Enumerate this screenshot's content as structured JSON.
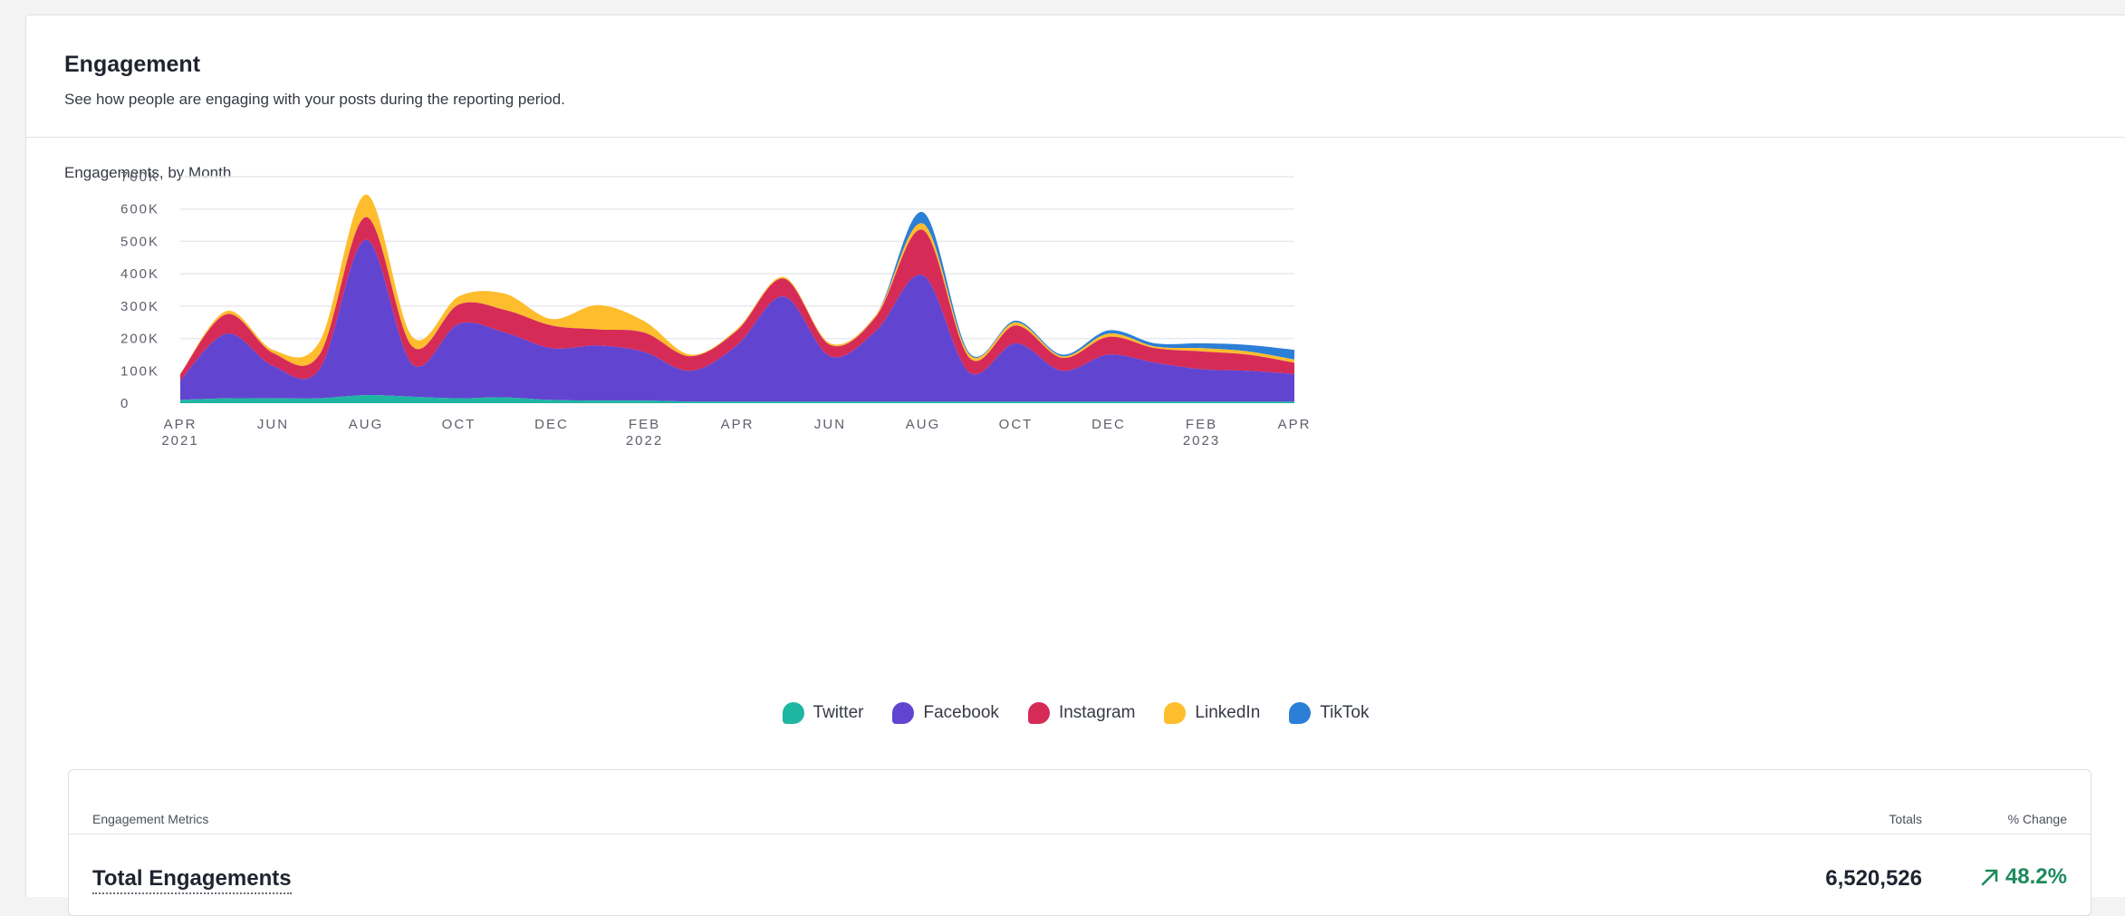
{
  "panel": {
    "title": "Engagement",
    "subtitle": "See how people are engaging with your posts during the reporting period."
  },
  "chart_title": "Engagements, by Month",
  "chart_data": {
    "type": "area",
    "stacked": true,
    "title": "Engagements, by Month",
    "x": [
      "2021-04",
      "2021-05",
      "2021-06",
      "2021-07",
      "2021-08",
      "2021-09",
      "2021-10",
      "2021-11",
      "2021-12",
      "2022-01",
      "2022-02",
      "2022-03",
      "2022-04",
      "2022-05",
      "2022-06",
      "2022-07",
      "2022-08",
      "2022-09",
      "2022-10",
      "2022-11",
      "2022-12",
      "2023-01",
      "2023-02",
      "2023-03",
      "2023-04"
    ],
    "x_tick_labels": [
      {
        "x": "2021-04",
        "label": "APR",
        "sublabel": "2021"
      },
      {
        "x": "2021-06",
        "label": "JUN",
        "sublabel": ""
      },
      {
        "x": "2021-08",
        "label": "AUG",
        "sublabel": ""
      },
      {
        "x": "2021-10",
        "label": "OCT",
        "sublabel": ""
      },
      {
        "x": "2021-12",
        "label": "DEC",
        "sublabel": ""
      },
      {
        "x": "2022-02",
        "label": "FEB",
        "sublabel": "2022"
      },
      {
        "x": "2022-04",
        "label": "APR",
        "sublabel": ""
      },
      {
        "x": "2022-06",
        "label": "JUN",
        "sublabel": ""
      },
      {
        "x": "2022-08",
        "label": "AUG",
        "sublabel": ""
      },
      {
        "x": "2022-10",
        "label": "OCT",
        "sublabel": ""
      },
      {
        "x": "2022-12",
        "label": "DEC",
        "sublabel": ""
      },
      {
        "x": "2023-02",
        "label": "FEB",
        "sublabel": "2023"
      },
      {
        "x": "2023-04",
        "label": "APR",
        "sublabel": ""
      }
    ],
    "y_ticks": [
      0,
      100000,
      200000,
      300000,
      400000,
      500000,
      600000,
      700000
    ],
    "y_tick_labels": [
      "0",
      "100K",
      "200K",
      "300K",
      "400K",
      "500K",
      "600K",
      "700K"
    ],
    "ylim": [
      0,
      700000
    ],
    "grid": true,
    "legend_position": "bottom-center",
    "series": [
      {
        "name": "Twitter",
        "color": "#1fb5a3",
        "values": [
          10000,
          15000,
          15000,
          15000,
          25000,
          20000,
          15000,
          18000,
          10000,
          8000,
          8000,
          5000,
          5000,
          5000,
          5000,
          5000,
          5000,
          5000,
          5000,
          5000,
          5000,
          5000,
          5000,
          5000,
          5000
        ]
      },
      {
        "name": "Facebook",
        "color": "#6145d1",
        "values": [
          60000,
          200000,
          100000,
          90000,
          480000,
          100000,
          230000,
          200000,
          160000,
          170000,
          150000,
          95000,
          175000,
          325000,
          140000,
          220000,
          390000,
          90000,
          180000,
          95000,
          145000,
          120000,
          100000,
          95000,
          85000
        ]
      },
      {
        "name": "Instagram",
        "color": "#d62b57",
        "values": [
          20000,
          60000,
          40000,
          45000,
          70000,
          55000,
          60000,
          70000,
          70000,
          50000,
          60000,
          45000,
          45000,
          55000,
          35000,
          45000,
          140000,
          45000,
          55000,
          40000,
          55000,
          45000,
          55000,
          50000,
          35000
        ]
      },
      {
        "name": "LinkedIn",
        "color": "#fdbd2d",
        "values": [
          0,
          10000,
          10000,
          40000,
          70000,
          30000,
          25000,
          50000,
          20000,
          75000,
          35000,
          5000,
          5000,
          5000,
          5000,
          5000,
          20000,
          10000,
          10000,
          5000,
          10000,
          5000,
          10000,
          10000,
          10000
        ]
      },
      {
        "name": "TikTok",
        "color": "#2b7fd7",
        "values": [
          0,
          0,
          0,
          0,
          0,
          0,
          0,
          0,
          0,
          0,
          0,
          0,
          0,
          0,
          0,
          0,
          35000,
          5000,
          5000,
          5000,
          10000,
          10000,
          15000,
          20000,
          30000
        ]
      }
    ]
  },
  "legend": [
    {
      "name": "Twitter",
      "color": "#1fb5a3"
    },
    {
      "name": "Facebook",
      "color": "#6145d1"
    },
    {
      "name": "Instagram",
      "color": "#d62b57"
    },
    {
      "name": "LinkedIn",
      "color": "#fdbd2d"
    },
    {
      "name": "TikTok",
      "color": "#2b7fd7"
    }
  ],
  "metrics": {
    "header_label": "Engagement Metrics",
    "header_totals": "Totals",
    "header_change": "% Change",
    "rows": [
      {
        "label": "Total Engagements",
        "total": "6,520,526",
        "change": "48.2%",
        "change_color": "#1c8a5d",
        "trend_icon": "arrow-up-right-icon"
      }
    ]
  }
}
